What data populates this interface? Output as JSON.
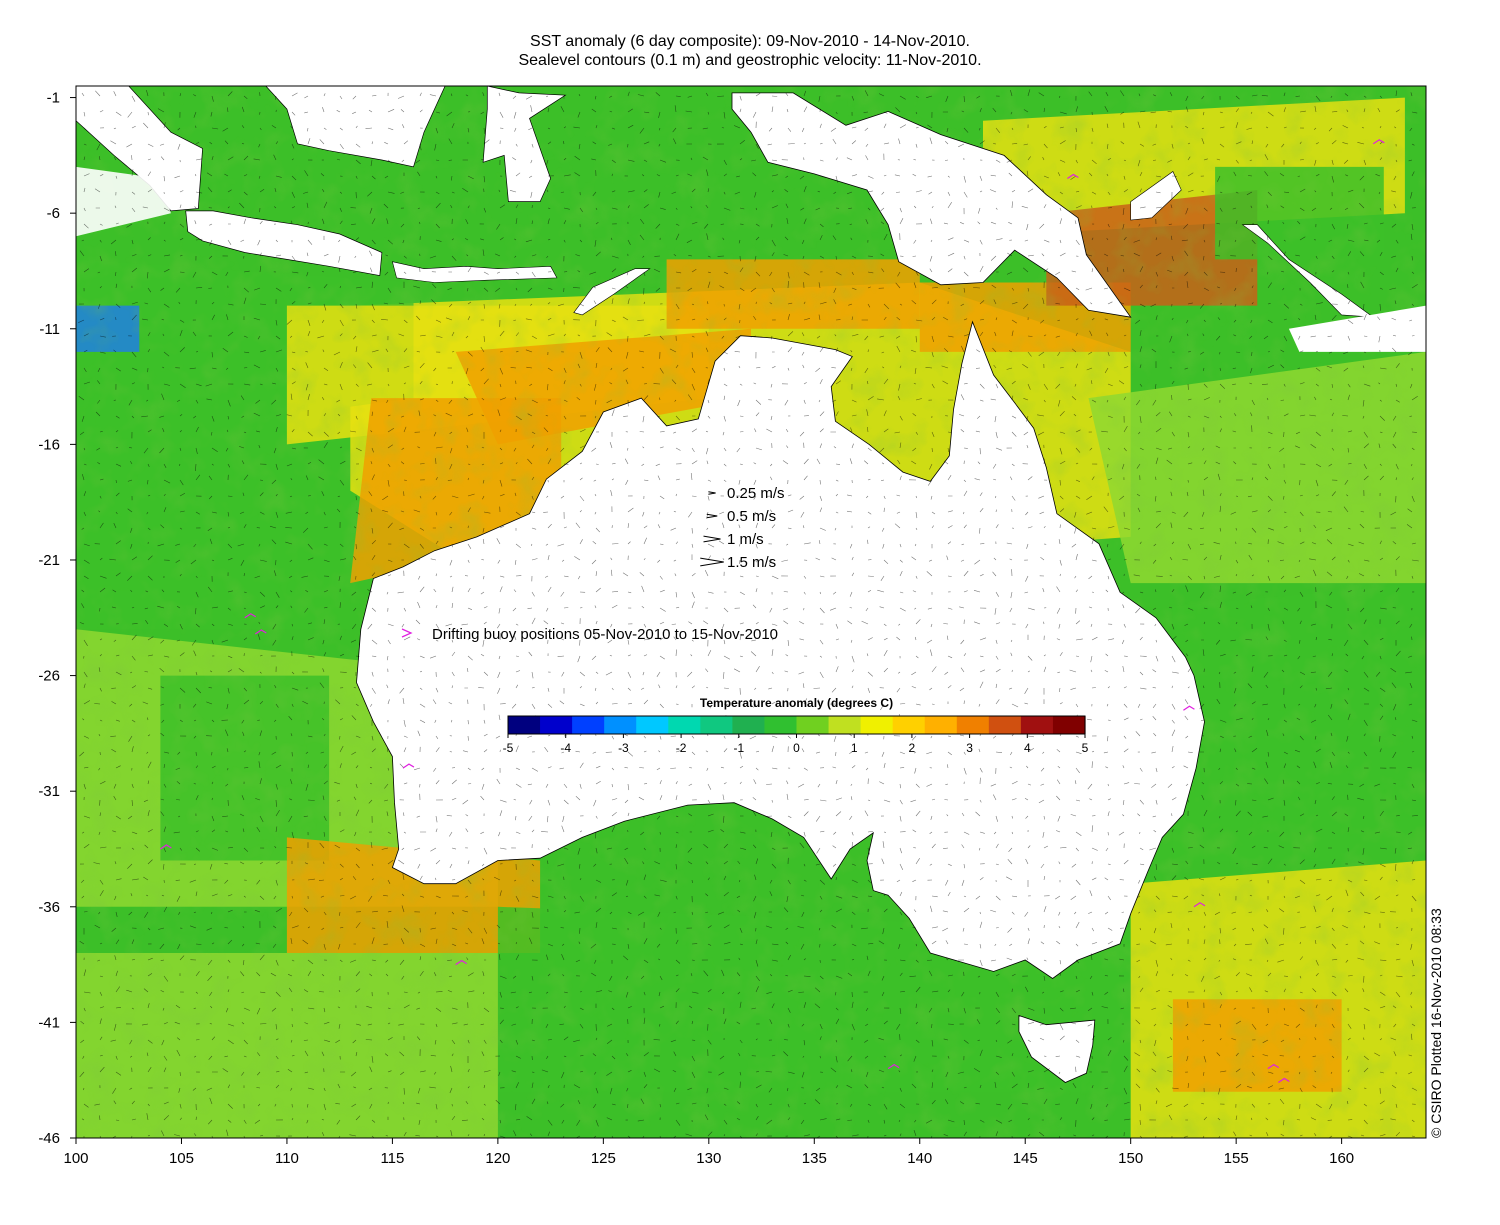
{
  "title_line1": "SST anomaly (6 day composite): 09-Nov-2010 - 14-Nov-2010.",
  "title_line2": "Sealevel contours (0.1 m) and geostrophic velocity: 11-Nov-2010.",
  "credit": "© CSIRO Plotted 16-Nov-2010 08:33",
  "map": {
    "lon_range": [
      100,
      164
    ],
    "lat_range": [
      -46,
      -0.5
    ],
    "x_ticks": [
      "100",
      "105",
      "110",
      "115",
      "120",
      "125",
      "130",
      "135",
      "140",
      "145",
      "150",
      "155",
      "160"
    ],
    "y_ticks": [
      "-1",
      "-6",
      "-11",
      "-16",
      "-21",
      "-26",
      "-31",
      "-36",
      "-41",
      "-46"
    ]
  },
  "velocity_legend": {
    "items": [
      {
        "label": "0.25 m/s",
        "speed": 0.25
      },
      {
        "label": "0.5 m/s",
        "speed": 0.5
      },
      {
        "label": "1 m/s",
        "speed": 1
      },
      {
        "label": "1.5 m/s",
        "speed": 1.5
      }
    ]
  },
  "buoy_legend": {
    "label": "Drifting buoy positions 05-Nov-2010 to 15-Nov-2010",
    "color": "#e020e0"
  },
  "colorbar": {
    "title": "Temperature anomaly (degrees C)",
    "min": -5,
    "max": 5,
    "ticks": [
      "-5",
      "-4",
      "-3",
      "-2",
      "-1",
      "0",
      "1",
      "2",
      "3",
      "4",
      "5"
    ],
    "colors": [
      "#00007f",
      "#0000cc",
      "#0040ff",
      "#0090ff",
      "#00c8ff",
      "#00d8b0",
      "#10c880",
      "#20b050",
      "#30c030",
      "#70d020",
      "#c0e020",
      "#f0f000",
      "#ffd000",
      "#ffb000",
      "#f08000",
      "#d05010",
      "#a01010",
      "#800000"
    ]
  },
  "land_color": "#ffffff",
  "ocean_colors": {
    "green": "#3cbf28",
    "lightgreen": "#8fd830",
    "yellow": "#e8e010",
    "orange": "#f0a000",
    "darkorange": "#c86018",
    "cyan": "#20b8b0",
    "blue": "#2080e0"
  }
}
